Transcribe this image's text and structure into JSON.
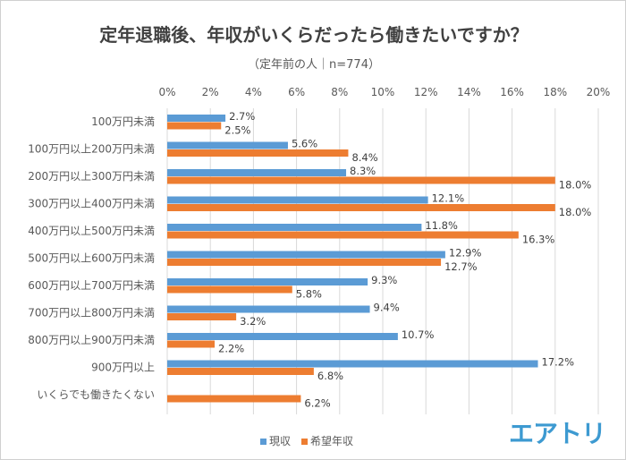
{
  "chart_data": {
    "type": "bar",
    "orientation": "horizontal",
    "title": "定年退職後、年収がいくらだったら働きたいですか？",
    "subtitle": "（定年前の人｜n=774）",
    "categories": [
      "100万円未満",
      "100万円以上200万円未満",
      "200万円以上300万円未満",
      "300万円以上400万円未満",
      "400万円以上500万円未満",
      "500万円以上600万円未満",
      "600万円以上700万円未満",
      "700万円以上800万円未満",
      "800万円以上900万円未満",
      "900万円以上",
      "いくらでも働きたくない"
    ],
    "series": [
      {
        "name": "現収",
        "color": "#5b9bd5",
        "values": [
          2.7,
          5.6,
          8.3,
          12.1,
          11.8,
          12.9,
          9.3,
          9.4,
          10.7,
          17.2,
          null
        ]
      },
      {
        "name": "希望年収",
        "color": "#ed7d31",
        "values": [
          2.5,
          8.4,
          18.0,
          18.0,
          16.3,
          12.7,
          5.8,
          3.2,
          2.2,
          6.8,
          6.2
        ]
      }
    ],
    "xlim": [
      0,
      20
    ],
    "ticks": [
      "0%",
      "2%",
      "4%",
      "6%",
      "8%",
      "10%",
      "12%",
      "14%",
      "16%",
      "18%",
      "20%"
    ],
    "grid": true,
    "legend": "bottom"
  },
  "logo": "エアトリ"
}
